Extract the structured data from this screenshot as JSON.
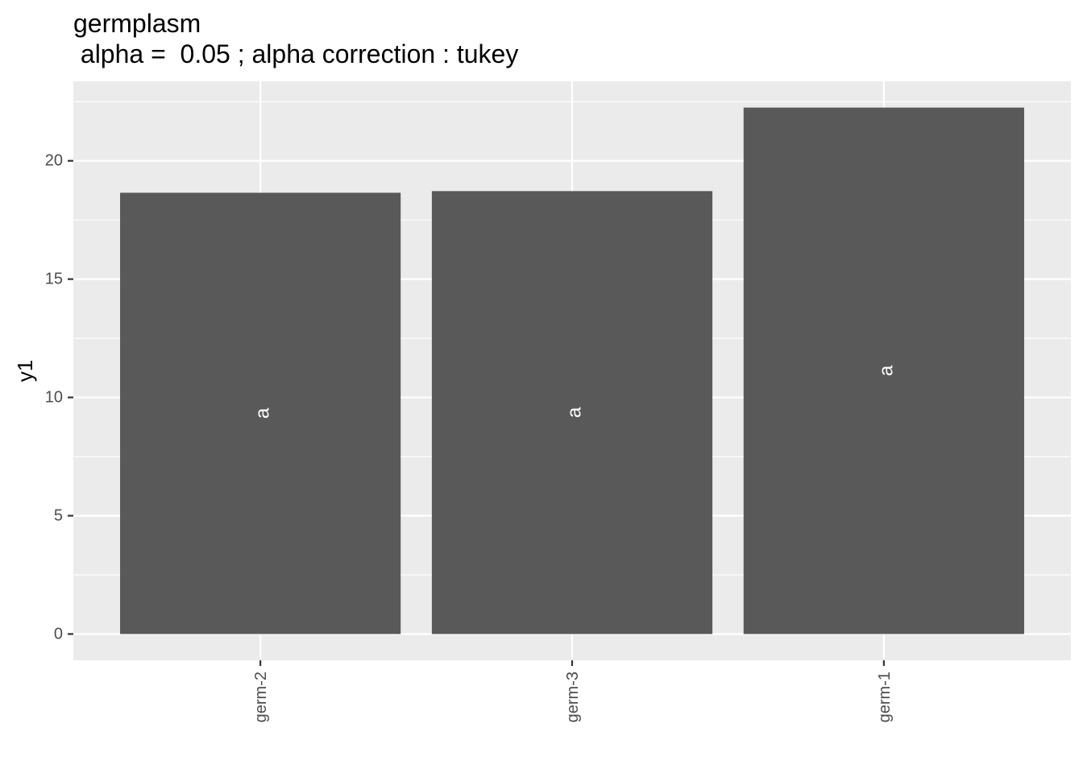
{
  "chart_data": {
    "type": "bar",
    "title": "germplasm",
    "subtitle": " alpha =  0.05 ; alpha correction : tukey",
    "xlabel": "",
    "ylabel": "y1",
    "categories": [
      "germ-2",
      "germ-3",
      "germ-1"
    ],
    "values": [
      18.65,
      18.72,
      22.25
    ],
    "bar_labels": [
      "a",
      "a",
      "a"
    ],
    "ylim": [
      -1.11,
      23.36
    ],
    "yticks": [
      0,
      5,
      10,
      15,
      20
    ],
    "ytick_labels": [
      "0",
      "5",
      "10",
      "15",
      "20"
    ],
    "grid": true,
    "legend": "none",
    "colors": {
      "bar": "#595959",
      "panel": "#ebebeb",
      "grid": "#ffffff",
      "tick_text": "#4d4d4d",
      "tick_mark": "#333333",
      "bar_label": "#ffffff"
    }
  }
}
